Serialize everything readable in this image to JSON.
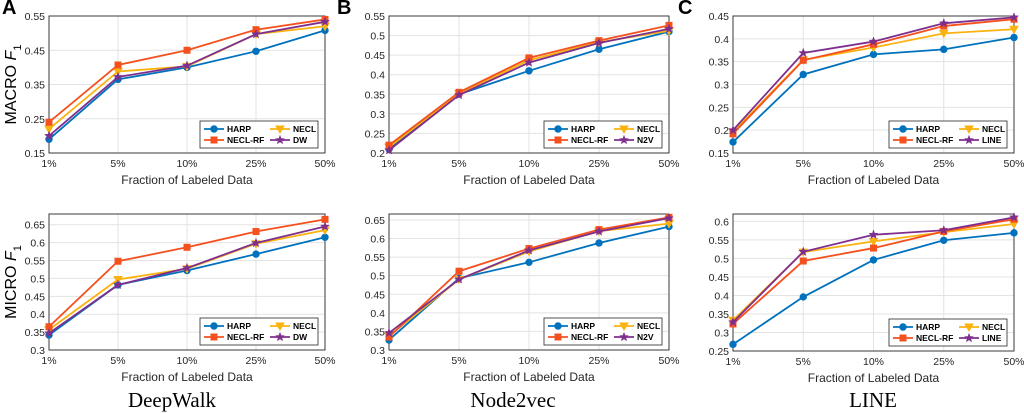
{
  "colors": {
    "HARP": "#0072BD",
    "NECL-RF": "#F4511E",
    "NECL": "#F9B20F",
    "other": "#7E2F8E"
  },
  "chart_data": [
    {
      "type": "line",
      "panel": "A",
      "ylabel": "MACRO F1",
      "xlabel": "Fraction of Labeled Data",
      "categories": [
        "1%",
        "5%",
        "10%",
        "25%",
        "50%"
      ],
      "ylim": [
        0.15,
        0.55
      ],
      "yticks": [
        "0.15",
        "0.25",
        "0.35",
        "0.45",
        "0.55"
      ],
      "ytick_values": [
        0.15,
        0.25,
        0.35,
        0.45,
        0.55
      ],
      "grid": true,
      "legend": "bottom-right",
      "series": [
        {
          "name": "HARP",
          "marker": "circle",
          "values": [
            0.19,
            0.365,
            0.4,
            0.447,
            0.508
          ]
        },
        {
          "name": "NECL",
          "marker": "triangle-down",
          "values": [
            0.22,
            0.388,
            0.403,
            0.497,
            0.52
          ]
        },
        {
          "name": "NECL-RF",
          "marker": "square",
          "values": [
            0.24,
            0.407,
            0.45,
            0.51,
            0.54
          ]
        },
        {
          "name": "DW",
          "marker": "star",
          "values": [
            0.2,
            0.372,
            0.405,
            0.497,
            0.533
          ]
        }
      ]
    },
    {
      "type": "line",
      "panel": "B",
      "ylabel": "",
      "xlabel": "Fraction of Labeled Data",
      "categories": [
        "1%",
        "5%",
        "10%",
        "25%",
        "50%"
      ],
      "ylim": [
        0.2,
        0.55
      ],
      "yticks": [
        "0.2",
        "0.25",
        "0.3",
        "0.35",
        "0.4",
        "0.45",
        "0.5",
        "0.55"
      ],
      "ytick_values": [
        0.2,
        0.25,
        0.3,
        0.35,
        0.4,
        0.45,
        0.5,
        0.55
      ],
      "grid": true,
      "legend": "bottom-right",
      "series": [
        {
          "name": "HARP",
          "marker": "circle",
          "values": [
            0.21,
            0.35,
            0.41,
            0.465,
            0.51
          ]
        },
        {
          "name": "NECL",
          "marker": "triangle-down",
          "values": [
            0.215,
            0.352,
            0.437,
            0.483,
            0.512
          ]
        },
        {
          "name": "NECL-RF",
          "marker": "square",
          "values": [
            0.22,
            0.355,
            0.443,
            0.487,
            0.526
          ]
        },
        {
          "name": "N2V",
          "marker": "star",
          "values": [
            0.207,
            0.348,
            0.431,
            0.481,
            0.517
          ]
        }
      ]
    },
    {
      "type": "line",
      "panel": "C",
      "ylabel": "",
      "xlabel": "Fraction of Labeled Data",
      "categories": [
        "1%",
        "5%",
        "10%",
        "25%",
        "50%"
      ],
      "ylim": [
        0.15,
        0.45
      ],
      "yticks": [
        "0.15",
        "0.2",
        "0.25",
        "0.3",
        "0.35",
        "0.4",
        "0.45"
      ],
      "ytick_values": [
        0.15,
        0.2,
        0.25,
        0.3,
        0.35,
        0.4,
        0.45
      ],
      "grid": true,
      "legend": "bottom-right",
      "series": [
        {
          "name": "HARP",
          "marker": "circle",
          "values": [
            0.174,
            0.322,
            0.366,
            0.377,
            0.403
          ]
        },
        {
          "name": "NECL",
          "marker": "triangle-down",
          "values": [
            0.196,
            0.354,
            0.381,
            0.412,
            0.421
          ]
        },
        {
          "name": "NECL-RF",
          "marker": "square",
          "values": [
            0.192,
            0.353,
            0.388,
            0.428,
            0.443
          ]
        },
        {
          "name": "LINE",
          "marker": "star",
          "values": [
            0.2,
            0.369,
            0.394,
            0.434,
            0.447
          ]
        }
      ]
    },
    {
      "type": "line",
      "panel": "",
      "ylabel": "MICRO F1",
      "xlabel": "Fraction of Labeled Data",
      "title": "DeepWalk",
      "categories": [
        "1%",
        "5%",
        "10%",
        "25%",
        "50%"
      ],
      "ylim": [
        0.3,
        0.68
      ],
      "yticks": [
        "0.3",
        "0.35",
        "0.4",
        "0.45",
        "0.5",
        "0.55",
        "0.6",
        "0.65"
      ],
      "ytick_values": [
        0.3,
        0.35,
        0.4,
        0.45,
        0.5,
        0.55,
        0.6,
        0.65
      ],
      "grid": true,
      "legend": "bottom-right",
      "series": [
        {
          "name": "HARP",
          "marker": "circle",
          "values": [
            0.342,
            0.482,
            0.522,
            0.568,
            0.615
          ]
        },
        {
          "name": "NECL",
          "marker": "triangle-down",
          "values": [
            0.357,
            0.497,
            0.527,
            0.597,
            0.635
          ]
        },
        {
          "name": "NECL-RF",
          "marker": "square",
          "values": [
            0.365,
            0.548,
            0.587,
            0.631,
            0.665
          ]
        },
        {
          "name": "DW",
          "marker": "star",
          "values": [
            0.347,
            0.482,
            0.529,
            0.599,
            0.645
          ]
        }
      ]
    },
    {
      "type": "line",
      "panel": "",
      "ylabel": "",
      "xlabel": "Fraction of Labeled Data",
      "title": "Node2vec",
      "categories": [
        "1%",
        "5%",
        "10%",
        "25%",
        "50%"
      ],
      "ylim": [
        0.3,
        0.666
      ],
      "yticks": [
        "0.3",
        "0.35",
        "0.4",
        "0.45",
        "0.5",
        "0.55",
        "0.6",
        "0.65"
      ],
      "ytick_values": [
        0.3,
        0.35,
        0.4,
        0.45,
        0.5,
        0.55,
        0.6,
        0.65
      ],
      "grid": true,
      "legend": "bottom-right",
      "series": [
        {
          "name": "HARP",
          "marker": "circle",
          "values": [
            0.327,
            0.493,
            0.536,
            0.588,
            0.632
          ]
        },
        {
          "name": "NECL",
          "marker": "triangle-down",
          "values": [
            0.338,
            0.49,
            0.565,
            0.62,
            0.64
          ]
        },
        {
          "name": "NECL-RF",
          "marker": "square",
          "values": [
            0.335,
            0.512,
            0.573,
            0.624,
            0.657
          ]
        },
        {
          "name": "N2V",
          "marker": "star",
          "values": [
            0.346,
            0.49,
            0.568,
            0.619,
            0.655
          ]
        }
      ]
    },
    {
      "type": "line",
      "panel": "",
      "ylabel": "",
      "xlabel": "Fraction of Labeled Data",
      "title": "LINE",
      "categories": [
        "1%",
        "5%",
        "10%",
        "25%",
        "50%"
      ],
      "ylim": [
        0.25,
        0.62
      ],
      "yticks": [
        "0.25",
        "0.3",
        "0.35",
        "0.4",
        "0.45",
        "0.5",
        "0.55",
        "0.6"
      ],
      "ytick_values": [
        0.25,
        0.3,
        0.35,
        0.4,
        0.45,
        0.5,
        0.55,
        0.6
      ],
      "grid": true,
      "legend": "bottom-right",
      "series": [
        {
          "name": "HARP",
          "marker": "circle",
          "values": [
            0.268,
            0.396,
            0.496,
            0.549,
            0.569
          ]
        },
        {
          "name": "NECL",
          "marker": "triangle-down",
          "values": [
            0.333,
            0.517,
            0.546,
            0.571,
            0.593
          ]
        },
        {
          "name": "NECL-RF",
          "marker": "square",
          "values": [
            0.323,
            0.493,
            0.528,
            0.573,
            0.606
          ]
        },
        {
          "name": "LINE",
          "marker": "star",
          "values": [
            0.328,
            0.518,
            0.564,
            0.576,
            0.611
          ]
        }
      ]
    }
  ]
}
